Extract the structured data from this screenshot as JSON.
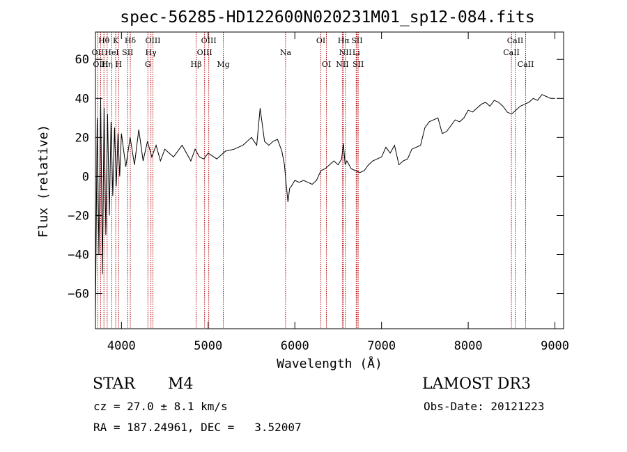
{
  "chart_data": {
    "type": "line",
    "title": "spec-56285-HD122600N020231M01_sp12-084.fits",
    "xlabel": "Wavelength (Å)",
    "ylabel": "Flux (relative)",
    "xlim": [
      3700,
      9100
    ],
    "ylim": [
      -78,
      74
    ],
    "x_ticks": [
      4000,
      5000,
      6000,
      7000,
      8000,
      9000
    ],
    "y_ticks": [
      -60,
      -40,
      -20,
      0,
      20,
      40,
      60
    ],
    "grid": false,
    "series": [
      {
        "x": [
          3700,
          3720,
          3740,
          3760,
          3780,
          3800,
          3820,
          3840,
          3860,
          3880,
          3900,
          3920,
          3940,
          3960,
          3980,
          4000,
          4050,
          4100,
          4150,
          4200,
          4250,
          4300,
          4350,
          4400,
          4450,
          4500,
          4600,
          4700,
          4800,
          4850,
          4900,
          4950,
          5000,
          5100,
          5200,
          5300,
          5400,
          5500,
          5560,
          5600,
          5650,
          5700,
          5750,
          5800,
          5850,
          5880,
          5900,
          5920,
          5940,
          5960,
          6000,
          6050,
          6100,
          6150,
          6200,
          6250,
          6300,
          6350,
          6400,
          6450,
          6500,
          6540,
          6560,
          6580,
          6600,
          6650,
          6700,
          6750,
          6800,
          6850,
          6900,
          6950,
          7000,
          7050,
          7100,
          7150,
          7200,
          7250,
          7300,
          7350,
          7400,
          7450,
          7500,
          7550,
          7600,
          7650,
          7700,
          7750,
          7800,
          7850,
          7900,
          7950,
          8000,
          8050,
          8100,
          8150,
          8200,
          8250,
          8300,
          8350,
          8400,
          8450,
          8500,
          8550,
          8600,
          8650,
          8700,
          8750,
          8800,
          8850,
          8900,
          8950,
          9000
        ],
        "values": [
          -72,
          30,
          -40,
          40,
          -50,
          35,
          -30,
          32,
          -20,
          28,
          -10,
          25,
          -5,
          22,
          0,
          22,
          5,
          20,
          6,
          24,
          8,
          18,
          10,
          16,
          8,
          14,
          10,
          16,
          8,
          14,
          10,
          9,
          12,
          9,
          13,
          14,
          16,
          20,
          16,
          35,
          18,
          16,
          18,
          19,
          13,
          6,
          -4,
          -13,
          -6,
          -5,
          -2,
          -3,
          -2,
          -3,
          -4,
          -2,
          3,
          4,
          6,
          8,
          6,
          9,
          17,
          6,
          8,
          4,
          3,
          2,
          3,
          6,
          8,
          9,
          10,
          15,
          12,
          16,
          6,
          8,
          9,
          14,
          15,
          16,
          25,
          28,
          29,
          30,
          22,
          23,
          26,
          29,
          28,
          30,
          34,
          33,
          35,
          37,
          38,
          36,
          39,
          38,
          36,
          33,
          32,
          34,
          36,
          37,
          38,
          40,
          39,
          42,
          41,
          40,
          40
        ]
      }
    ],
    "emission_lines": [
      {
        "label": "Hθ",
        "x": 3798,
        "row": 0
      },
      {
        "label": "OII",
        "x": 3727,
        "row": 1
      },
      {
        "label": "OIII",
        "x": 3760,
        "row": 2
      },
      {
        "label": "K",
        "x": 3934,
        "row": 0
      },
      {
        "label": "HeI",
        "x": 3889,
        "row": 1
      },
      {
        "label": "Hη",
        "x": 3835,
        "row": 2
      },
      {
        "label": "SII",
        "x": 4072,
        "row": 1
      },
      {
        "label": "H",
        "x": 3968,
        "row": 2
      },
      {
        "label": "Hδ",
        "x": 4102,
        "row": 0
      },
      {
        "label": "OIII",
        "x": 4363,
        "row": 0
      },
      {
        "label": "Hγ",
        "x": 4340,
        "row": 1
      },
      {
        "label": "G",
        "x": 4305,
        "row": 2
      },
      {
        "label": "OIII",
        "x": 5007,
        "row": 0
      },
      {
        "label": "OIII",
        "x": 4959,
        "row": 1
      },
      {
        "label": "Hβ",
        "x": 4861,
        "row": 2
      },
      {
        "label": "Mg",
        "x": 5175,
        "row": 2
      },
      {
        "label": "Na",
        "x": 5893,
        "row": 1
      },
      {
        "label": "OI",
        "x": 6300,
        "row": 0
      },
      {
        "label": "OI",
        "x": 6364,
        "row": 2
      },
      {
        "label": "Hα",
        "x": 6563,
        "row": 0
      },
      {
        "label": "SII",
        "x": 6717,
        "row": 0
      },
      {
        "label": "NII",
        "x": 6583,
        "row": 1
      },
      {
        "label": "Li",
        "x": 6708,
        "row": 1
      },
      {
        "label": "NII",
        "x": 6548,
        "row": 2
      },
      {
        "label": "SII",
        "x": 6731,
        "row": 2
      },
      {
        "label": "CaII",
        "x": 8542,
        "row": 0
      },
      {
        "label": "CaII",
        "x": 8498,
        "row": 1
      },
      {
        "label": "CaII",
        "x": 8662,
        "row": 2
      }
    ]
  },
  "info": {
    "class_label": "STAR",
    "subclass": "M4",
    "survey": "LAMOST DR3",
    "redshift": "cz = 27.0 ± 8.1 km/s",
    "obs_date": "Obs-Date: 20121223",
    "coords": "RA = 187.24961, DEC =   3.52007"
  },
  "colors": {
    "spectrum": "#000000",
    "line_markers": "#b30000"
  }
}
